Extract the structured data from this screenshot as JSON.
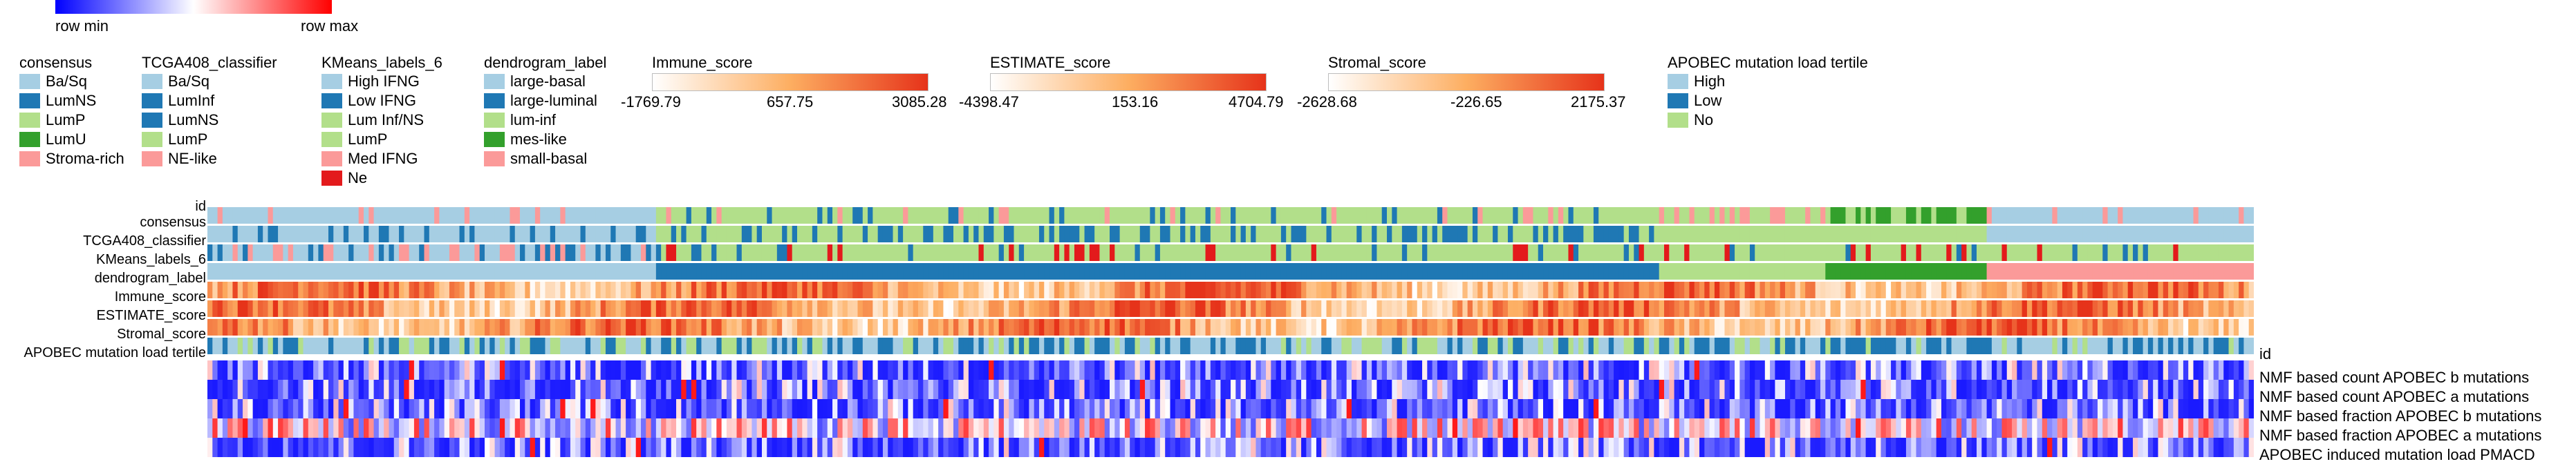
{
  "scale": {
    "min_label": "row min",
    "max_label": "row max",
    "colors": [
      "#0000ff",
      "#ffffff",
      "#ff0000"
    ]
  },
  "legends": {
    "consensus": {
      "title": "consensus",
      "items": [
        {
          "label": "Ba/Sq",
          "color": "#a6cee3"
        },
        {
          "label": "LumNS",
          "color": "#1f78b4"
        },
        {
          "label": "LumP",
          "color": "#b2df8a"
        },
        {
          "label": "LumU",
          "color": "#33a02c"
        },
        {
          "label": "Stroma-rich",
          "color": "#fb9a99"
        }
      ]
    },
    "tcga": {
      "title": "TCGA408_classifier",
      "items": [
        {
          "label": "Ba/Sq",
          "color": "#a6cee3"
        },
        {
          "label": "LumInf",
          "color": "#1f78b4"
        },
        {
          "label": "LumNS",
          "color": "#1f78b4"
        },
        {
          "label": "LumP",
          "color": "#b2df8a"
        },
        {
          "label": "NE-like",
          "color": "#fb9a99"
        }
      ]
    },
    "kmeans": {
      "title": "KMeans_labels_6",
      "items": [
        {
          "label": "High IFNG",
          "color": "#a6cee3"
        },
        {
          "label": "Low IFNG",
          "color": "#1f78b4"
        },
        {
          "label": "Lum Inf/NS",
          "color": "#b2df8a"
        },
        {
          "label": "LumP",
          "color": "#b2df8a"
        },
        {
          "label": "Med IFNG",
          "color": "#fb9a99"
        },
        {
          "label": "Ne",
          "color": "#e31a1c"
        }
      ]
    },
    "dendrogram": {
      "title": "dendrogram_label",
      "items": [
        {
          "label": "large-basal",
          "color": "#a6cee3"
        },
        {
          "label": "large-luminal",
          "color": "#1f78b4"
        },
        {
          "label": "lum-inf",
          "color": "#b2df8a"
        },
        {
          "label": "mes-like",
          "color": "#33a02c"
        },
        {
          "label": "small-basal",
          "color": "#fb9a99"
        }
      ]
    },
    "apobec": {
      "title": "APOBEC mutation load tertile",
      "items": [
        {
          "label": "High",
          "color": "#a6cee3"
        },
        {
          "label": "Low",
          "color": "#1f78b4"
        },
        {
          "label": "No",
          "color": "#b2df8a"
        }
      ]
    }
  },
  "colorbars": [
    {
      "title": "Immune_score",
      "ticks": [
        "-1769.79",
        "657.75",
        "3085.28"
      ],
      "colors": [
        "#ffffff",
        "#fdae61",
        "#e6331a"
      ]
    },
    {
      "title": "ESTIMATE_score",
      "ticks": [
        "-4398.47",
        "153.16",
        "4704.79"
      ],
      "colors": [
        "#ffffff",
        "#fdae61",
        "#e6331a"
      ]
    },
    {
      "title": "Stromal_score",
      "ticks": [
        "-2628.68",
        "-226.65",
        "2175.37"
      ],
      "colors": [
        "#ffffff",
        "#fdae61",
        "#e6331a"
      ]
    }
  ],
  "chart_data": {
    "type": "heatmap",
    "id_label": "id",
    "n_samples": 406,
    "annotation_rows": [
      {
        "name": "consensus",
        "kind": "categorical"
      },
      {
        "name": "TCGA408_classifier",
        "kind": "categorical"
      },
      {
        "name": "KMeans_labels_6",
        "kind": "categorical"
      },
      {
        "name": "dendrogram_label",
        "kind": "categorical"
      },
      {
        "name": "Immune_score",
        "kind": "continuous"
      },
      {
        "name": "ESTIMATE_score",
        "kind": "continuous"
      },
      {
        "name": "Stromal_score",
        "kind": "continuous"
      },
      {
        "name": "APOBEC mutation load tertile",
        "kind": "categorical"
      }
    ],
    "dendrogram_blocks": [
      {
        "label": "large-basal",
        "fraction": 0.22
      },
      {
        "label": "large-luminal",
        "fraction": 0.49
      },
      {
        "label": "lum-inf",
        "fraction": 0.08
      },
      {
        "label": "mes-like",
        "fraction": 0.08
      },
      {
        "label": "small-basal",
        "fraction": 0.13
      }
    ],
    "heatmap_rows": [
      "NMF based count APOBEC b mutations",
      "NMF based count APOBEC a mutations",
      "NMF based fraction APOBEC b mutations",
      "NMF based fraction APOBEC a mutations",
      "APOBEC induced mutation load  PMACD"
    ],
    "value_range": [
      "row min",
      "row max"
    ]
  }
}
